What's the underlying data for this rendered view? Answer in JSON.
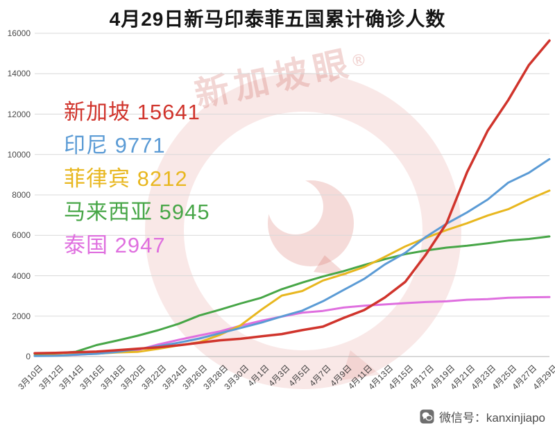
{
  "title": "4月29日新马印泰菲五国累计确诊人数",
  "watermark": {
    "text": "新加坡眼",
    "reg": "®"
  },
  "footer": {
    "label": "微信号：kanxinjiapo",
    "icon": "wechat-icon"
  },
  "chart_data": {
    "type": "line",
    "title": "4月29日新马印泰菲五国累计确诊人数",
    "x": [
      "3月10日",
      "3月12日",
      "3月14日",
      "3月16日",
      "3月18日",
      "3月20日",
      "3月22日",
      "3月24日",
      "3月26日",
      "3月28日",
      "3月30日",
      "4月1日",
      "4月3日",
      "4月5日",
      "4月7日",
      "4月9日",
      "4月11日",
      "4月13日",
      "4月15日",
      "4月17日",
      "4月19日",
      "4月21日",
      "4月23日",
      "4月25日",
      "4月27日",
      "4月29日"
    ],
    "ylim": [
      0,
      16000
    ],
    "ytick_step": 2000,
    "grid": true,
    "legend_position": "overlay-top-left",
    "series": [
      {
        "name": "新加坡",
        "latest": 15641,
        "color": "#d0342c",
        "values": [
          166,
          178,
          212,
          243,
          313,
          385,
          455,
          558,
          683,
          802,
          879,
          1000,
          1114,
          1309,
          1481,
          1910,
          2299,
          2918,
          3699,
          5050,
          6588,
          9125,
          11178,
          12693,
          14423,
          15641
        ]
      },
      {
        "name": "印尼",
        "latest": 9771,
        "color": "#5b9bd5",
        "values": [
          27,
          34,
          96,
          134,
          227,
          369,
          514,
          686,
          893,
          1155,
          1414,
          1677,
          1986,
          2273,
          2738,
          3293,
          3842,
          4557,
          5136,
          5923,
          6575,
          7135,
          7775,
          8607,
          9096,
          9771
        ]
      },
      {
        "name": "菲律宾",
        "latest": 8212,
        "color": "#e8b71f",
        "values": [
          33,
          52,
          111,
          142,
          202,
          230,
          380,
          552,
          707,
          1075,
          1546,
          2311,
          3018,
          3246,
          3764,
          4076,
          4428,
          4932,
          5453,
          5878,
          6259,
          6599,
          6981,
          7294,
          7777,
          8212
        ]
      },
      {
        "name": "马来西亚",
        "latest": 5945,
        "color": "#47a647",
        "values": [
          129,
          158,
          238,
          566,
          790,
          1030,
          1306,
          1624,
          2031,
          2320,
          2626,
          2908,
          3333,
          3662,
          3963,
          4228,
          4530,
          4817,
          5072,
          5251,
          5389,
          5482,
          5603,
          5742,
          5820,
          5945
        ]
      },
      {
        "name": "泰国",
        "latest": 2947,
        "color": "#df6fdf",
        "values": [
          53,
          70,
          82,
          147,
          212,
          322,
          599,
          827,
          1045,
          1245,
          1524,
          1771,
          1978,
          2169,
          2258,
          2423,
          2518,
          2579,
          2643,
          2700,
          2733,
          2811,
          2839,
          2907,
          2931,
          2947
        ]
      }
    ]
  }
}
